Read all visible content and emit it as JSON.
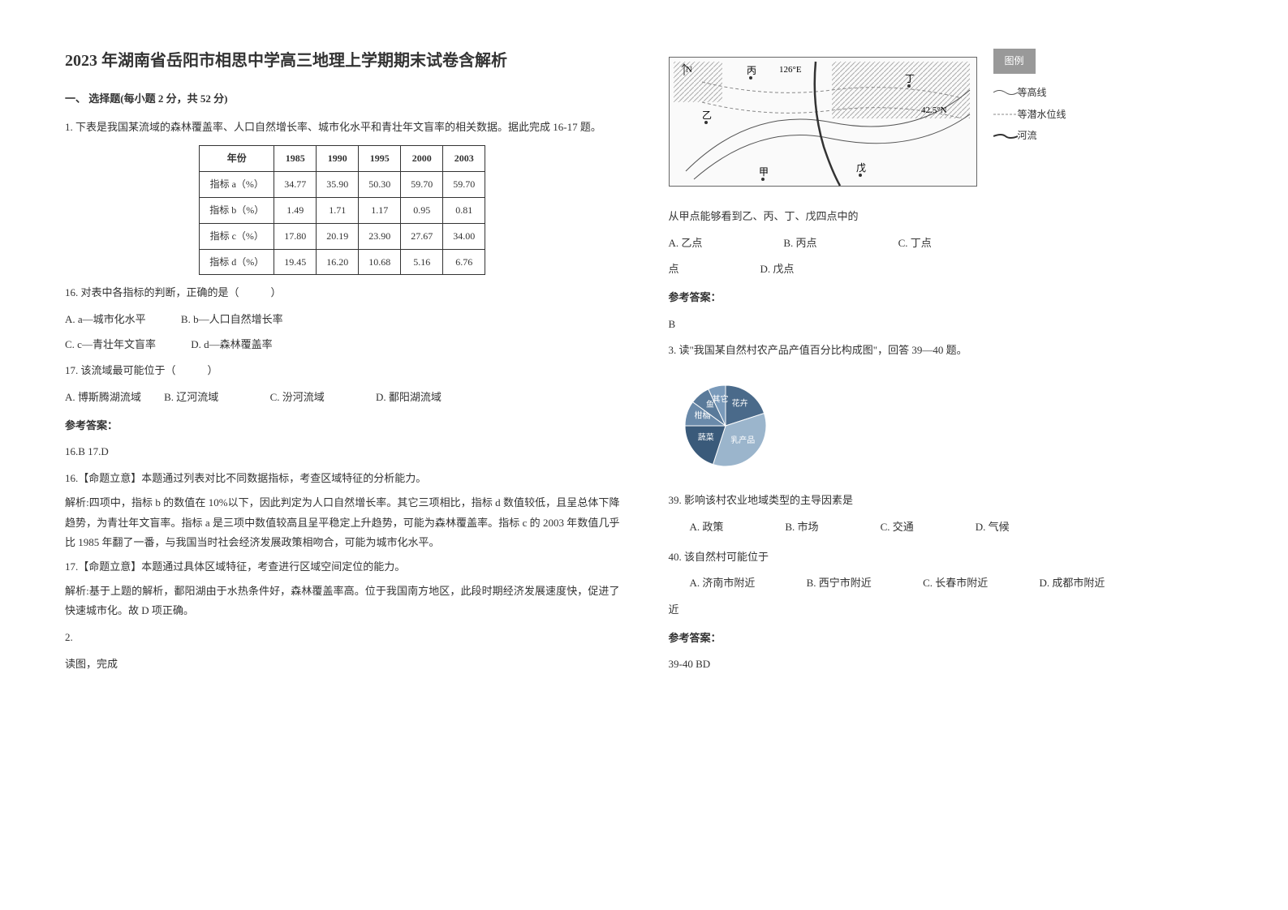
{
  "title": "2023 年湖南省岳阳市相思中学高三地理上学期期末试卷含解析",
  "section1": {
    "header": "一、 选择题(每小题 2 分，共 52 分)",
    "q1": {
      "intro": "1. 下表是我国某流域的森林覆盖率、人口自然增长率、城市化水平和青壮年文盲率的相关数据。据此完成 16-17 题。",
      "table": {
        "columns": [
          "年份",
          "1985",
          "1990",
          "1995",
          "2000",
          "2003"
        ],
        "rows": [
          [
            "指标 a（%）",
            "34.77",
            "35.90",
            "50.30",
            "59.70",
            "59.70"
          ],
          [
            "指标 b（%）",
            "1.49",
            "1.71",
            "1.17",
            "0.95",
            "0.81"
          ],
          [
            "指标 c（%）",
            "17.80",
            "20.19",
            "23.90",
            "27.67",
            "34.00"
          ],
          [
            "指标 d（%）",
            "19.45",
            "16.20",
            "10.68",
            "5.16",
            "6.76"
          ]
        ],
        "border_color": "#333333",
        "cell_fontsize": 12
      },
      "q16": {
        "stem": "16. 对表中各指标的判断，正确的是（　　　）",
        "optA": "A. a—城市化水平",
        "optB": "B. b—人口自然增长率",
        "optC": "C.  c—青壮年文盲率",
        "optD": "D. d—森林覆盖率"
      },
      "q17": {
        "stem": "17. 该流域最可能位于（　　　）",
        "optA": "A. 博斯腾湖流域",
        "optB": "B. 辽河流域",
        "optC": "C. 汾河流域",
        "optD": "D. 鄱阳湖流域"
      },
      "answer_label": "参考答案：",
      "answer": "16.B  17.D",
      "analysis16_title": "16.【命题立意】本题通过列表对比不同数据指标，考查区域特征的分析能力。",
      "analysis16_body": "解析:四项中，指标 b 的数值在 10%以下，因此判定为人口自然增长率。其它三项相比，指标 d 数值较低，且呈总体下降趋势，为青壮年文盲率。指标 a 是三项中数值较高且呈平稳定上升趋势，可能为森林覆盖率。指标 c 的 2003 年数值几乎比 1985 年翻了一番，与我国当时社会经济发展政策相吻合，可能为城市化水平。",
      "analysis17_title": "17.【命题立意】本题通过具体区域特征，考查进行区域空间定位的能力。",
      "analysis17_body": "解析:基于上题的解析，鄱阳湖由于水热条件好，森林覆盖率高。位于我国南方地区，此段时期经济发展速度快，促进了快速城市化。故 D 项正确。"
    },
    "q2": {
      "num": "2.",
      "intro": "读图，完成",
      "map": {
        "labels": {
          "north": "N",
          "bing": "丙",
          "lon": "126°E",
          "yi": "乙",
          "lat": "42.5°N",
          "jia": "甲",
          "wu": "戊",
          "ding": "丁"
        },
        "legend_title": "图例",
        "legend_items": [
          {
            "label": "等高线",
            "style": "wave"
          },
          {
            "label": "等潜水位线",
            "style": "dash"
          },
          {
            "label": "河流",
            "style": "solid"
          }
        ],
        "colors": {
          "contour": "#555555",
          "water": "#888888",
          "river": "#333333",
          "hatch": "#777777"
        }
      },
      "stem": "从甲点能够看到乙、丙、丁、戊四点中的",
      "optA": "A. 乙点",
      "optB": "B. 丙点",
      "optC": "C. 丁点",
      "optD": "D. 戊点",
      "answer_label": "参考答案：",
      "answer": "B"
    },
    "q3": {
      "intro": "3. 读\"我国某自然村农产品产值百分比构成图\"，回答 39—40 题。",
      "pie": {
        "type": "pie",
        "slices": [
          {
            "label": "花卉",
            "value": 20,
            "color": "#4a6a8a"
          },
          {
            "label": "乳产品",
            "value": 35,
            "color": "#9bb5cc"
          },
          {
            "label": "蔬菜",
            "value": 20,
            "color": "#3a5a7a"
          },
          {
            "label": "柑橘",
            "value": 10,
            "color": "#6a8aaa"
          },
          {
            "label": "鱼",
            "value": 8,
            "color": "#5a7a9a"
          },
          {
            "label": "其它",
            "value": 7,
            "color": "#7a9aba"
          }
        ],
        "stroke": "#ffffff",
        "label_fontsize": 10
      },
      "q39": {
        "stem": "39. 影响该村农业地域类型的主导因素是",
        "optA": "A. 政策",
        "optB": "B. 市场",
        "optC": "C. 交通",
        "optD": "D. 气候"
      },
      "q40": {
        "stem": "40. 该自然村可能位于",
        "optA": "A. 济南市附近",
        "optB": "B. 西宁市附近",
        "optC": "C. 长春市附近",
        "optD": "D. 成都市附近"
      },
      "answer_label": "参考答案：",
      "answer": "39-40 BD"
    }
  }
}
